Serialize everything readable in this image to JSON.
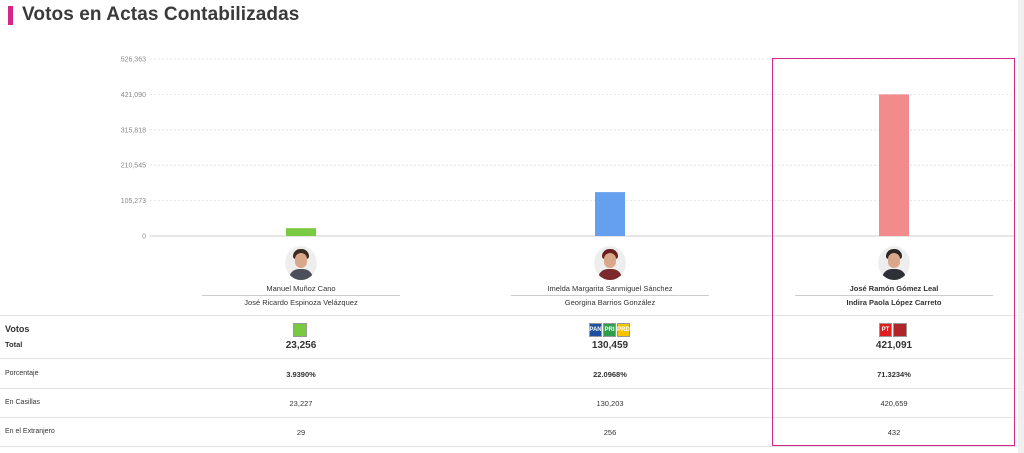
{
  "title": "Votos en Actas Contabilizadas",
  "chart_data": {
    "type": "bar",
    "categories": [
      "Manuel Muñoz Cano",
      "Imelda Margarita Sanmiguel Sánchez",
      "José Ramón Gómez Leal"
    ],
    "values": [
      23256,
      130459,
      421091
    ],
    "ylim": [
      0,
      526363
    ],
    "yticks": [
      "526,363",
      "421,090",
      "315,818",
      "210,545",
      "105,273",
      "0"
    ],
    "ytick_values": [
      526363,
      421090,
      315818,
      210545,
      105273,
      0
    ],
    "colors": [
      "#7ac943",
      "#64a0ee",
      "#f28b8b"
    ],
    "grid": true
  },
  "candidates": [
    {
      "name": "Manuel Muñoz Cano",
      "sub": "José Ricardo Espinoza Velázquez",
      "hair": "#3b2a20",
      "body": "#4a4f5a"
    },
    {
      "name": "Imelda Margarita Sanmiguel Sánchez",
      "sub": "Georgina Barrios González",
      "hair": "#6b1f1f",
      "body": "#7a2a2a"
    },
    {
      "name": "José Ramón Gómez Leal",
      "sub": "Indira Paola López Carreto",
      "hair": "#2a2622",
      "body": "#2e3138"
    }
  ],
  "table": {
    "votos_label": "Votos",
    "total_label": "Total",
    "porcentaje_label": "Porcentaje",
    "casillas_label": "En Casillas",
    "extranjero_label": "En el Extranjero",
    "columns": [
      {
        "total": "23,256",
        "porcentaje": "3.9390%",
        "casillas": "23,227",
        "extranjero": "29",
        "logos": [
          {
            "text": "",
            "bg": "#7ac943"
          }
        ]
      },
      {
        "total": "130,459",
        "porcentaje": "22.0968%",
        "casillas": "130,203",
        "extranjero": "256",
        "logos": [
          {
            "text": "PAN",
            "bg": "#1f4fa0"
          },
          {
            "text": "PRI",
            "bg": "#2e9e4a"
          },
          {
            "text": "PRD",
            "bg": "#f5c400"
          }
        ]
      },
      {
        "total": "421,091",
        "porcentaje": "71.3234%",
        "casillas": "420,659",
        "extranjero": "432",
        "logos": [
          {
            "text": "PT",
            "bg": "#e02020"
          },
          {
            "text": "",
            "bg": "#b0252a"
          }
        ]
      }
    ]
  },
  "accent_color": "#d5268a"
}
